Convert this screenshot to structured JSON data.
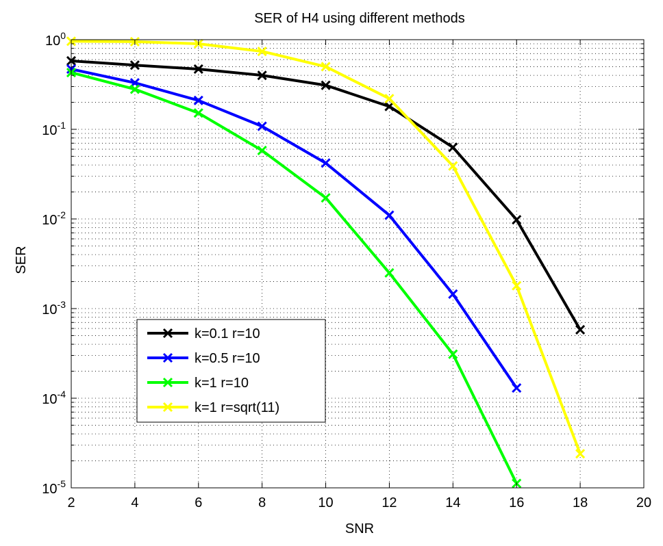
{
  "chart_data": {
    "type": "line",
    "title": "SER of H4 using different methods",
    "xlabel": "SNR",
    "ylabel": "SER",
    "xlim": [
      2,
      20
    ],
    "ylim": [
      1e-05,
      1
    ],
    "yscale": "log",
    "grid": true,
    "legend_position": "lower-left",
    "x_ticks": [
      "2",
      "4",
      "6",
      "8",
      "10",
      "12",
      "14",
      "16",
      "18",
      "20"
    ],
    "y_ticks": [
      {
        "base": "10",
        "exp": "0"
      },
      {
        "base": "10",
        "exp": "-1"
      },
      {
        "base": "10",
        "exp": "-2"
      },
      {
        "base": "10",
        "exp": "-3"
      },
      {
        "base": "10",
        "exp": "-4"
      },
      {
        "base": "10",
        "exp": "-5"
      }
    ],
    "series": [
      {
        "name": "k=0.1 r=10",
        "color": "#000000",
        "marker": "x",
        "x": [
          2,
          4,
          6,
          8,
          10,
          12,
          14,
          16,
          18
        ],
        "y": [
          0.58,
          0.52,
          0.47,
          0.4,
          0.31,
          0.18,
          0.063,
          0.0098,
          0.00058
        ]
      },
      {
        "name": "k=0.5 r=10",
        "color": "#0000ff",
        "marker": "x",
        "x": [
          2,
          4,
          6,
          8,
          10,
          12,
          14,
          16
        ],
        "y": [
          0.47,
          0.33,
          0.21,
          0.108,
          0.042,
          0.011,
          0.00145,
          0.00013
        ]
      },
      {
        "name": "k=1 r=10",
        "color": "#00ff00",
        "marker": "x",
        "x": [
          2,
          4,
          6,
          8,
          10,
          12,
          14,
          16
        ],
        "y": [
          0.43,
          0.28,
          0.152,
          0.058,
          0.0172,
          0.0025,
          0.00031,
          1.12e-05
        ]
      },
      {
        "name": "k=1 r=sqrt(11)",
        "color": "#ffff00",
        "marker": "x",
        "x": [
          2,
          4,
          6,
          8,
          10,
          12,
          14,
          16,
          18
        ],
        "y": [
          0.96,
          0.95,
          0.9,
          0.74,
          0.5,
          0.22,
          0.039,
          0.0018,
          2.4e-05
        ]
      }
    ]
  }
}
